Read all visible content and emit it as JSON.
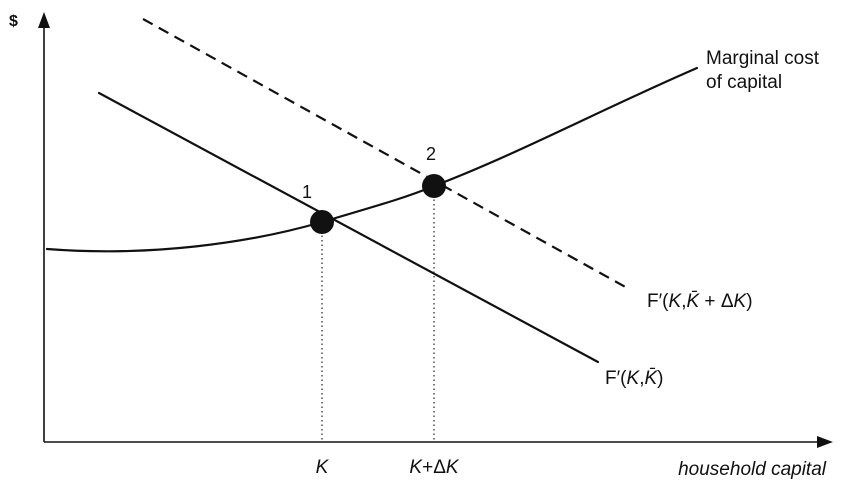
{
  "axes": {
    "y_label": "$",
    "x_label": "household capital"
  },
  "curves": {
    "marginal_cost_line1": "Marginal cost",
    "marginal_cost_line2": "of capital"
  },
  "points": {
    "p1": "1",
    "p2": "2"
  },
  "ticks": {
    "k": "K",
    "k_prefix": "K",
    "k_plus": "+",
    "delta": "Δ",
    "k_suffix": "K"
  },
  "mp_labels": {
    "f_prime": "F′(",
    "var_k": "K",
    "comma": ",",
    "kbar": "K̄",
    "close": ")",
    "plus": " + ",
    "delta": "Δ"
  }
}
